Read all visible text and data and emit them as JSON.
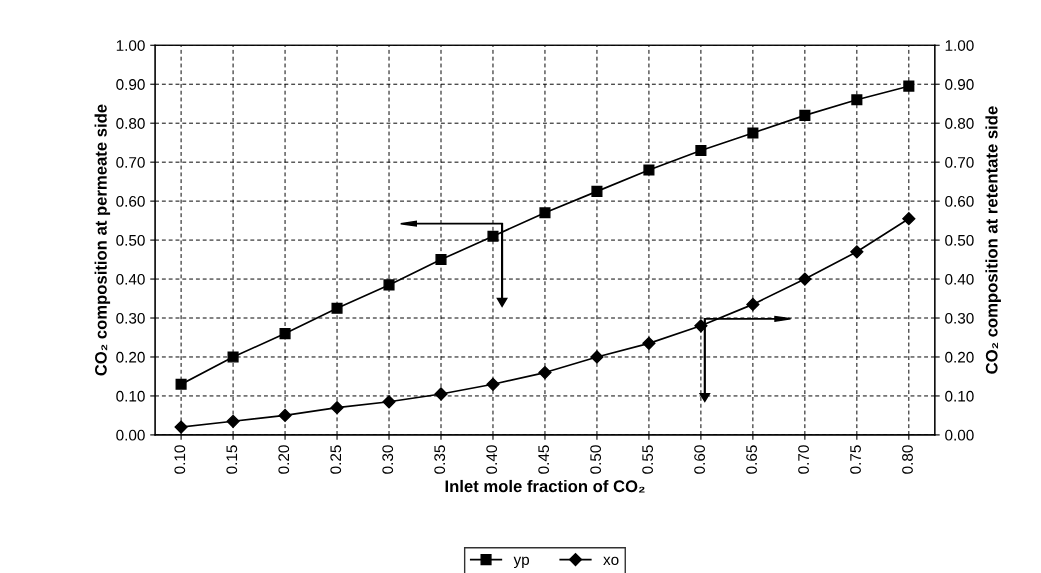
{
  "chart_data": {
    "type": "line",
    "xlabel": "Inlet mole fraction of CO₂",
    "ylabel": "CO₂ composition at permeate side",
    "y2label": "CO₂ composition at retentate side",
    "categories": [
      "0.10",
      "0.15",
      "0.20",
      "0.25",
      "0.30",
      "0.35",
      "0.40",
      "0.45",
      "0.50",
      "0.55",
      "0.60",
      "0.65",
      "0.70",
      "0.75",
      "0.80"
    ],
    "series": [
      {
        "name": "yp",
        "color": "#000000",
        "marker": "square",
        "values": [
          0.13,
          0.2,
          0.26,
          0.325,
          0.385,
          0.45,
          0.51,
          0.57,
          0.625,
          0.68,
          0.73,
          0.775,
          0.82,
          0.86,
          0.895
        ]
      },
      {
        "name": "xo",
        "color": "#000000",
        "marker": "diamond",
        "values": [
          0.02,
          0.035,
          0.05,
          0.07,
          0.085,
          0.105,
          0.13,
          0.16,
          0.2,
          0.235,
          0.28,
          0.335,
          0.4,
          0.47,
          0.555
        ]
      }
    ],
    "ylim": [
      0,
      1
    ],
    "yticks": [
      {
        "value": 0,
        "label": "0.00"
      },
      {
        "value": 0.1,
        "label": "0.10"
      },
      {
        "value": 0.2,
        "label": "0.20"
      },
      {
        "value": 0.3,
        "label": "0.30"
      },
      {
        "value": 0.4,
        "label": "0.40"
      },
      {
        "value": 0.5,
        "label": "0.50"
      },
      {
        "value": 0.6,
        "label": "0.60"
      },
      {
        "value": 0.7,
        "label": "0.70"
      },
      {
        "value": 0.8,
        "label": "0.80"
      },
      {
        "value": 0.9,
        "label": "0.90"
      },
      {
        "value": 1,
        "label": "1.00"
      }
    ],
    "y2lim": [
      0,
      1
    ],
    "y2ticks": [
      {
        "value": 0,
        "label": "0.00"
      },
      {
        "value": 0.1,
        "label": "0.10"
      },
      {
        "value": 0.2,
        "label": "0.20"
      },
      {
        "value": 0.3,
        "label": "0.30"
      },
      {
        "value": 0.4,
        "label": "0.40"
      },
      {
        "value": 0.5,
        "label": "0.50"
      },
      {
        "value": 0.6,
        "label": "0.60"
      },
      {
        "value": 0.7,
        "label": "0.70"
      },
      {
        "value": 0.8,
        "label": "0.80"
      },
      {
        "value": 0.9,
        "label": "0.90"
      },
      {
        "value": 1,
        "label": "1.00"
      }
    ],
    "grid": true,
    "line_style": "solid",
    "legend": "bottom"
  }
}
